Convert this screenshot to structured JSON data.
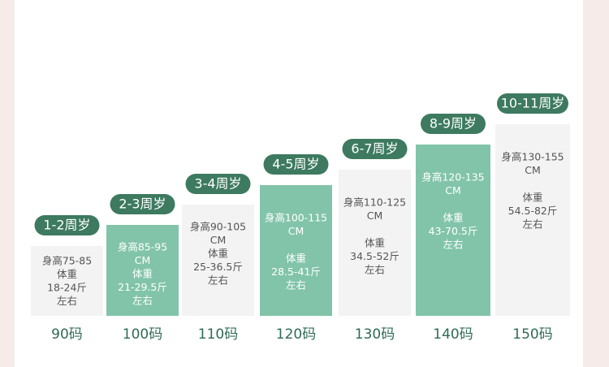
{
  "colors": {
    "badge": "#3d7a60",
    "highlight": "#82c4aa",
    "plain": "#f3f3f3",
    "size_text": "#2f6b55"
  },
  "columns": [
    {
      "age": "1-2周岁",
      "height_lines": [
        "身高75-85"
      ],
      "weight_lines": [
        "体重",
        "18-24斤",
        "左右"
      ],
      "size": "90码",
      "highlight": false
    },
    {
      "age": "2-3周岁",
      "height_lines": [
        "身高85-95",
        "CM"
      ],
      "weight_lines": [
        "体重",
        "21-29.5斤",
        "左右"
      ],
      "size": "100码",
      "highlight": true
    },
    {
      "age": "3-4周岁",
      "height_lines": [
        "身高90-105",
        "CM"
      ],
      "weight_lines": [
        "体重",
        "25-36.5斤",
        "左右"
      ],
      "size": "110码",
      "highlight": false
    },
    {
      "age": "4-5周岁",
      "height_lines": [
        "身高100-115",
        "CM"
      ],
      "weight_lines": [
        "体重",
        "28.5-41斤",
        "左右"
      ],
      "size": "120码",
      "highlight": true
    },
    {
      "age": "6-7周岁",
      "height_lines": [
        "身高110-125",
        "CM"
      ],
      "weight_lines": [
        "体重",
        "34.5-52斤",
        "左右"
      ],
      "size": "130码",
      "highlight": false
    },
    {
      "age": "8-9周岁",
      "height_lines": [
        "身高120-135",
        "CM"
      ],
      "weight_lines": [
        "体重",
        "43-70.5斤",
        "左右"
      ],
      "size": "140码",
      "highlight": true
    },
    {
      "age": "10-11周岁",
      "height_lines": [
        "身高130-155",
        "CM"
      ],
      "weight_lines": [
        "体重",
        "54.5-82斤",
        "左右"
      ],
      "size": "150码",
      "highlight": false
    }
  ]
}
